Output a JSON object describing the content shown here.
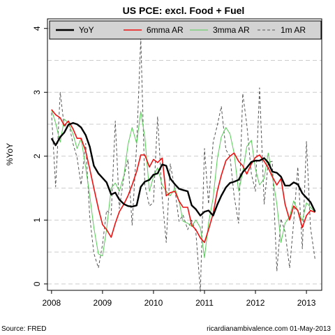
{
  "chart_data": {
    "type": "line",
    "title": "US PCE: excl. Food + Fuel",
    "ylabel": "%YoY",
    "ylim": [
      -0.1,
      4.15
    ],
    "yticks": [
      0,
      1,
      2,
      3,
      4
    ],
    "xlim": [
      2007.92,
      2013.3
    ],
    "xticks": [
      2008,
      2009,
      2010,
      2011,
      2012,
      2013
    ],
    "grid": "horizontal dashed",
    "legend_position": "top",
    "series": [
      {
        "name": "YoY",
        "color": "#000000",
        "style": "solid-thick",
        "x": [
          2008.0,
          2008.08,
          2008.17,
          2008.25,
          2008.33,
          2008.42,
          2008.5,
          2008.58,
          2008.67,
          2008.75,
          2008.83,
          2008.92,
          2009.0,
          2009.08,
          2009.17,
          2009.25,
          2009.33,
          2009.42,
          2009.5,
          2009.58,
          2009.67,
          2009.75,
          2009.83,
          2009.92,
          2010.0,
          2010.08,
          2010.17,
          2010.25,
          2010.33,
          2010.42,
          2010.5,
          2010.58,
          2010.67,
          2010.75,
          2010.83,
          2010.92,
          2011.0,
          2011.08,
          2011.17,
          2011.25,
          2011.33,
          2011.42,
          2011.5,
          2011.58,
          2011.67,
          2011.75,
          2011.83,
          2011.92,
          2012.0,
          2012.08,
          2012.17,
          2012.25,
          2012.33,
          2012.42,
          2012.5,
          2012.58,
          2012.67,
          2012.75,
          2012.83,
          2012.92,
          2013.0,
          2013.08,
          2013.17
        ],
        "values": [
          2.28,
          2.17,
          2.3,
          2.37,
          2.49,
          2.52,
          2.5,
          2.45,
          2.33,
          2.15,
          1.85,
          1.73,
          1.66,
          1.59,
          1.4,
          1.43,
          1.32,
          1.25,
          1.22,
          1.21,
          1.23,
          1.52,
          1.6,
          1.63,
          1.71,
          1.73,
          1.87,
          1.85,
          1.65,
          1.56,
          1.49,
          1.47,
          1.45,
          1.23,
          1.17,
          1.07,
          1.13,
          1.15,
          1.07,
          1.24,
          1.38,
          1.51,
          1.58,
          1.6,
          1.63,
          1.75,
          1.82,
          1.91,
          1.93,
          1.93,
          1.97,
          1.9,
          1.76,
          1.74,
          1.68,
          1.54,
          1.54,
          1.59,
          1.56,
          1.42,
          1.35,
          1.28,
          1.13
        ]
      },
      {
        "name": "6mma AR",
        "color": "#ee1111",
        "style": "solid",
        "x": [
          2008.0,
          2008.08,
          2008.17,
          2008.25,
          2008.33,
          2008.42,
          2008.5,
          2008.58,
          2008.67,
          2008.75,
          2008.83,
          2008.92,
          2009.0,
          2009.08,
          2009.17,
          2009.25,
          2009.33,
          2009.42,
          2009.5,
          2009.58,
          2009.67,
          2009.75,
          2009.83,
          2009.92,
          2010.0,
          2010.08,
          2010.17,
          2010.25,
          2010.33,
          2010.42,
          2010.5,
          2010.58,
          2010.67,
          2010.75,
          2010.83,
          2010.92,
          2011.0,
          2011.08,
          2011.17,
          2011.25,
          2011.33,
          2011.42,
          2011.5,
          2011.58,
          2011.67,
          2011.75,
          2011.83,
          2011.92,
          2012.0,
          2012.08,
          2012.17,
          2012.25,
          2012.33,
          2012.42,
          2012.5,
          2012.58,
          2012.67,
          2012.75,
          2012.83,
          2012.92,
          2013.0,
          2013.08,
          2013.17
        ],
        "values": [
          2.73,
          2.65,
          2.6,
          2.48,
          2.55,
          2.43,
          2.28,
          2.28,
          2.08,
          1.8,
          1.5,
          1.18,
          0.93,
          0.85,
          0.73,
          0.95,
          1.13,
          1.25,
          1.38,
          1.55,
          1.76,
          2.02,
          2.02,
          1.83,
          1.95,
          1.9,
          1.97,
          1.38,
          1.43,
          1.45,
          1.3,
          1.2,
          1.2,
          0.92,
          0.85,
          0.72,
          0.65,
          0.85,
          1.1,
          1.45,
          1.7,
          1.93,
          2.0,
          2.05,
          1.92,
          1.85,
          1.72,
          1.88,
          1.98,
          2.02,
          1.92,
          1.82,
          1.68,
          1.55,
          1.65,
          1.25,
          1.0,
          1.22,
          1.15,
          0.88,
          1.07,
          1.15,
          1.12
        ]
      },
      {
        "name": "3mma AR",
        "color": "#55cc55",
        "style": "solid-thin",
        "x": [
          2008.0,
          2008.08,
          2008.17,
          2008.25,
          2008.33,
          2008.42,
          2008.5,
          2008.58,
          2008.67,
          2008.75,
          2008.83,
          2008.92,
          2009.0,
          2009.08,
          2009.17,
          2009.25,
          2009.33,
          2009.42,
          2009.5,
          2009.58,
          2009.67,
          2009.75,
          2009.83,
          2009.92,
          2010.0,
          2010.08,
          2010.17,
          2010.25,
          2010.33,
          2010.42,
          2010.5,
          2010.58,
          2010.67,
          2010.75,
          2010.83,
          2010.92,
          2011.0,
          2011.08,
          2011.17,
          2011.25,
          2011.33,
          2011.42,
          2011.5,
          2011.58,
          2011.67,
          2011.75,
          2011.83,
          2011.92,
          2012.0,
          2012.08,
          2012.17,
          2012.25,
          2012.33,
          2012.42,
          2012.5,
          2012.58,
          2012.67,
          2012.75,
          2012.83,
          2012.92,
          2013.0,
          2013.08,
          2013.17
        ],
        "values": [
          2.73,
          2.52,
          2.22,
          2.58,
          2.52,
          2.35,
          2.12,
          2.28,
          1.82,
          1.38,
          0.88,
          0.47,
          0.44,
          0.85,
          1.5,
          1.58,
          1.45,
          1.7,
          2.18,
          2.45,
          2.2,
          2.7,
          2.3,
          1.45,
          1.68,
          1.82,
          1.55,
          1.45,
          1.38,
          1.5,
          1.3,
          0.98,
          0.95,
          0.9,
          1.0,
          0.88,
          0.41,
          0.95,
          1.35,
          1.95,
          2.3,
          2.45,
          2.35,
          2.05,
          1.45,
          1.75,
          2.15,
          2.25,
          1.8,
          1.55,
          1.65,
          2.05,
          1.7,
          1.25,
          0.65,
          0.95,
          1.05,
          1.3,
          1.15,
          0.99,
          1.27,
          1.2,
          1.12
        ]
      },
      {
        "name": "1m AR",
        "color": "#555555",
        "style": "dashed",
        "x": [
          2008.0,
          2008.08,
          2008.17,
          2008.25,
          2008.33,
          2008.42,
          2008.5,
          2008.58,
          2008.67,
          2008.75,
          2008.83,
          2008.92,
          2009.0,
          2009.08,
          2009.17,
          2009.25,
          2009.33,
          2009.42,
          2009.5,
          2009.58,
          2009.67,
          2009.75,
          2009.83,
          2009.92,
          2010.0,
          2010.08,
          2010.17,
          2010.25,
          2010.33,
          2010.42,
          2010.5,
          2010.58,
          2010.67,
          2010.75,
          2010.83,
          2010.92,
          2011.0,
          2011.08,
          2011.17,
          2011.25,
          2011.33,
          2011.42,
          2011.5,
          2011.58,
          2011.67,
          2011.75,
          2011.83,
          2011.92,
          2012.0,
          2012.08,
          2012.17,
          2012.25,
          2012.33,
          2012.42,
          2012.5,
          2012.58,
          2012.67,
          2012.75,
          2012.83,
          2012.92,
          2013.0,
          2013.08,
          2013.17
        ],
        "values": [
          2.68,
          1.52,
          3.0,
          2.45,
          2.55,
          2.2,
          1.98,
          1.55,
          2.2,
          1.05,
          0.48,
          0.25,
          0.62,
          1.15,
          1.08,
          2.55,
          1.18,
          1.68,
          1.95,
          0.92,
          2.18,
          3.85,
          1.55,
          1.22,
          1.28,
          2.62,
          1.35,
          0.65,
          1.88,
          1.48,
          0.98,
          1.08,
          0.85,
          1.0,
          0.82,
          -0.12,
          2.12,
          1.25,
          2.22,
          2.48,
          2.78,
          2.1,
          2.0,
          1.38,
          0.95,
          2.98,
          2.5,
          1.72,
          1.45,
          3.07,
          1.25,
          1.9,
          1.92,
          0.2,
          1.02,
          0.82,
          0.25,
          0.97,
          1.83,
          0.55,
          2.23,
          0.88,
          0.38
        ]
      }
    ]
  },
  "footer": {
    "source": "Source: FRED",
    "credit": "ricardianambivalence.com   01-May-2013"
  },
  "colors": {
    "legend_background": "#d3d3d3",
    "grid": "#cccccc"
  }
}
